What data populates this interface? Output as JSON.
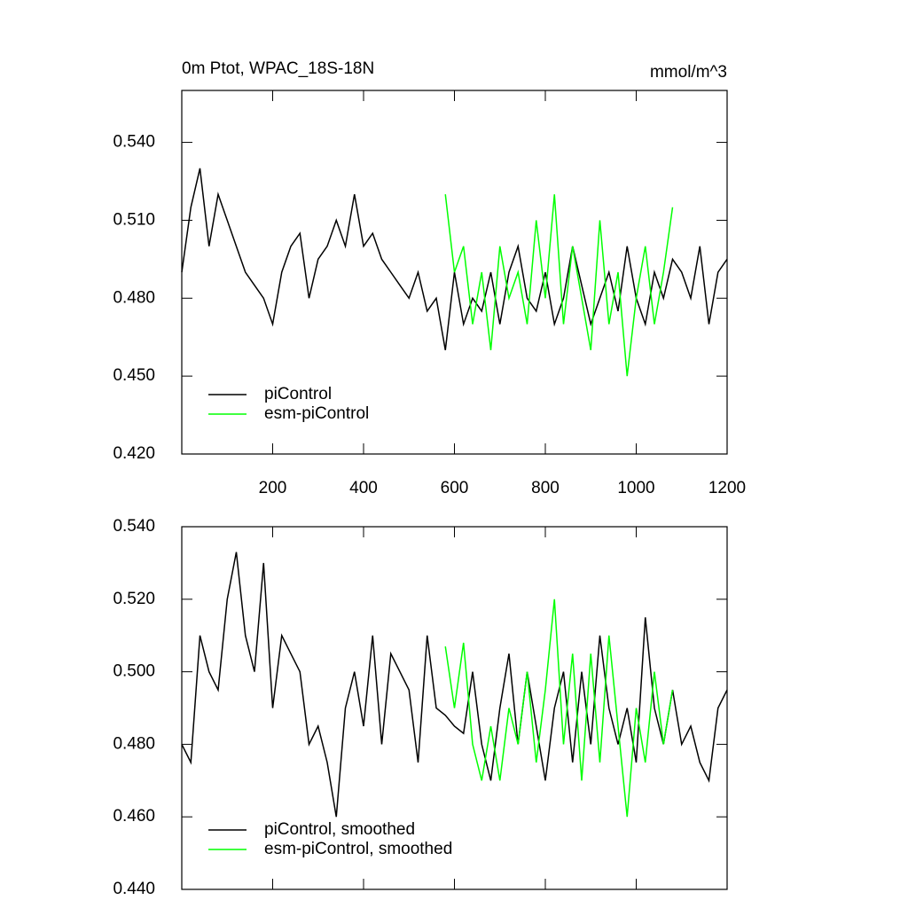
{
  "chart_data": [
    {
      "type": "line",
      "title": "0m Ptot, WPAC_18S-18N",
      "units_label": "mmol/m^3",
      "xlim": [
        0,
        1200
      ],
      "xticks": [
        200,
        400,
        600,
        800,
        1000,
        1200
      ],
      "xtick_labels": true,
      "ylim": [
        0.42,
        0.56
      ],
      "yticks": [
        {
          "value": 0.42,
          "label": "0.420"
        },
        {
          "value": 0.45,
          "label": "0.450"
        },
        {
          "value": 0.48,
          "label": "0.480"
        },
        {
          "value": 0.51,
          "label": "0.510"
        },
        {
          "value": 0.54,
          "label": "0.540"
        }
      ],
      "legend": "lower left",
      "series": [
        {
          "name": "piControl",
          "color": "#000000",
          "x": [
            0,
            20,
            40,
            60,
            80,
            100,
            120,
            140,
            160,
            180,
            200,
            220,
            240,
            260,
            280,
            300,
            320,
            340,
            360,
            380,
            400,
            420,
            440,
            460,
            480,
            500,
            520,
            540,
            560,
            580,
            600,
            620,
            640,
            660,
            680,
            700,
            720,
            740,
            760,
            780,
            800,
            820,
            840,
            860,
            880,
            900,
            920,
            940,
            960,
            980,
            1000,
            1020,
            1040,
            1060,
            1080,
            1100,
            1120,
            1140,
            1160,
            1180,
            1200
          ],
          "values": [
            0.49,
            0.515,
            0.53,
            0.5,
            0.52,
            0.51,
            0.5,
            0.49,
            0.485,
            0.48,
            0.47,
            0.49,
            0.5,
            0.505,
            0.48,
            0.495,
            0.5,
            0.51,
            0.5,
            0.52,
            0.5,
            0.505,
            0.495,
            0.49,
            0.485,
            0.48,
            0.49,
            0.475,
            0.48,
            0.46,
            0.49,
            0.47,
            0.48,
            0.475,
            0.49,
            0.47,
            0.49,
            0.5,
            0.48,
            0.475,
            0.49,
            0.47,
            0.48,
            0.5,
            0.485,
            0.47,
            0.48,
            0.49,
            0.475,
            0.5,
            0.48,
            0.47,
            0.49,
            0.48,
            0.495,
            0.49,
            0.48,
            0.5,
            0.47,
            0.49,
            0.495
          ]
        },
        {
          "name": "esm-piControl",
          "color": "#00ff00",
          "x": [
            580,
            600,
            620,
            640,
            660,
            680,
            700,
            720,
            740,
            760,
            780,
            800,
            820,
            840,
            860,
            880,
            900,
            920,
            940,
            960,
            980,
            1000,
            1020,
            1040,
            1060,
            1080
          ],
          "values": [
            0.52,
            0.49,
            0.5,
            0.47,
            0.49,
            0.46,
            0.5,
            0.48,
            0.49,
            0.47,
            0.51,
            0.48,
            0.52,
            0.47,
            0.5,
            0.48,
            0.46,
            0.51,
            0.47,
            0.49,
            0.45,
            0.48,
            0.5,
            0.47,
            0.49,
            0.515
          ]
        }
      ]
    },
    {
      "type": "line",
      "xlim": [
        0,
        1200
      ],
      "xticks": [
        200,
        400,
        600,
        800,
        1000,
        1200
      ],
      "xtick_labels": false,
      "ylim": [
        0.44,
        0.54
      ],
      "yticks": [
        {
          "value": 0.44,
          "label": "0.440"
        },
        {
          "value": 0.46,
          "label": "0.460"
        },
        {
          "value": 0.48,
          "label": "0.480"
        },
        {
          "value": 0.5,
          "label": "0.500"
        },
        {
          "value": 0.52,
          "label": "0.520"
        },
        {
          "value": 0.54,
          "label": "0.540"
        }
      ],
      "legend": "lower left",
      "series": [
        {
          "name": "piControl, smoothed",
          "color": "#000000",
          "x": [
            0,
            20,
            40,
            60,
            80,
            100,
            120,
            140,
            160,
            180,
            200,
            220,
            240,
            260,
            280,
            300,
            320,
            340,
            360,
            380,
            400,
            420,
            440,
            460,
            480,
            500,
            520,
            540,
            560,
            580,
            600,
            620,
            640,
            660,
            680,
            700,
            720,
            740,
            760,
            780,
            800,
            820,
            840,
            860,
            880,
            900,
            920,
            940,
            960,
            980,
            1000,
            1020,
            1040,
            1060,
            1080,
            1100,
            1120,
            1140,
            1160,
            1180,
            1200
          ],
          "values": [
            0.48,
            0.475,
            0.51,
            0.5,
            0.495,
            0.52,
            0.533,
            0.51,
            0.5,
            0.53,
            0.49,
            0.51,
            0.505,
            0.5,
            0.48,
            0.485,
            0.475,
            0.46,
            0.49,
            0.5,
            0.485,
            0.51,
            0.48,
            0.505,
            0.5,
            0.495,
            0.475,
            0.51,
            0.49,
            0.488,
            0.485,
            0.483,
            0.5,
            0.48,
            0.47,
            0.49,
            0.505,
            0.48,
            0.5,
            0.485,
            0.47,
            0.49,
            0.5,
            0.475,
            0.5,
            0.48,
            0.51,
            0.49,
            0.48,
            0.49,
            0.475,
            0.515,
            0.49,
            0.48,
            0.495,
            0.48,
            0.485,
            0.475,
            0.47,
            0.49,
            0.495
          ]
        },
        {
          "name": "esm-piControl, smoothed",
          "color": "#00ff00",
          "x": [
            580,
            600,
            620,
            640,
            660,
            680,
            700,
            720,
            740,
            760,
            780,
            800,
            820,
            840,
            860,
            880,
            900,
            920,
            940,
            960,
            980,
            1000,
            1020,
            1040,
            1060,
            1080
          ],
          "values": [
            0.507,
            0.49,
            0.508,
            0.48,
            0.47,
            0.485,
            0.47,
            0.49,
            0.48,
            0.5,
            0.475,
            0.495,
            0.52,
            0.48,
            0.505,
            0.47,
            0.505,
            0.475,
            0.51,
            0.485,
            0.46,
            0.49,
            0.475,
            0.5,
            0.48,
            0.495
          ]
        }
      ]
    }
  ]
}
